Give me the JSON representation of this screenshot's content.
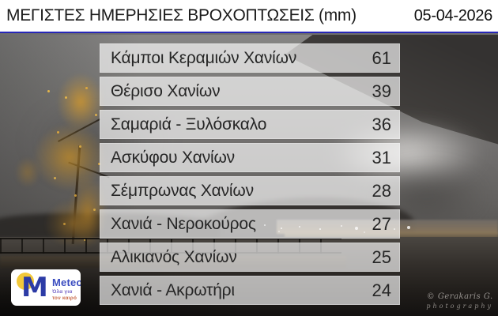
{
  "header": {
    "title": "ΜΕΓΙΣΤΕΣ ΗΜΕΡΗΣΙΕΣ ΒΡΟΧΟΠΤΩΣΕΙΣ (mm)",
    "date": "05-04-2026"
  },
  "table": {
    "rows": [
      {
        "station": "Κάμποι Κεραμιών Χανίων",
        "value": "61"
      },
      {
        "station": "Θέρισο Χανίων",
        "value": "39"
      },
      {
        "station": "Σαμαριά - Ξυλόσκαλο",
        "value": "36"
      },
      {
        "station": "Ασκύφου Χανίων",
        "value": "31"
      },
      {
        "station": "Σέμπρωνας Χανίων",
        "value": "28"
      },
      {
        "station": "Χανιά - Νεροκούρος",
        "value": "27"
      },
      {
        "station": "Αλικιανός Χανίων",
        "value": "25"
      },
      {
        "station": "Χανιά - Ακρωτήρι",
        "value": "24"
      }
    ]
  },
  "chart_data": {
    "type": "table",
    "title": "ΜΕΓΙΣΤΕΣ ΗΜΕΡΗΣΙΕΣ ΒΡΟΧΟΠΤΩΣΕΙΣ (mm)",
    "date": "05-04-2026",
    "unit": "mm",
    "categories": [
      "Κάμποι Κεραμιών Χανίων",
      "Θέρισο Χανίων",
      "Σαμαριά - Ξυλόσκαλο",
      "Ασκύφου Χανίων",
      "Σέμπρωνας Χανίων",
      "Χανιά - Νεροκούρος",
      "Αλικιανός Χανίων",
      "Χανιά - Ακρωτήρι"
    ],
    "values": [
      61,
      39,
      36,
      31,
      28,
      27,
      25,
      24
    ]
  },
  "logo": {
    "mark": "M",
    "brand": "Meteo",
    "tagline_line1": "Όλα για",
    "tagline_line2": "τον καιρό"
  },
  "watermark": {
    "line1": "© Gerakaris G.",
    "line2": "photography"
  },
  "colors": {
    "header_rule_blue": "#2626b8",
    "brand_blue": "#2c3ba6",
    "brand_yellow": "#f2c839",
    "tagline_violet": "#7a68c8",
    "tagline_orange": "#c96a49",
    "row_background": "rgba(255,255,255,0.66)",
    "row_text": "#262626"
  }
}
